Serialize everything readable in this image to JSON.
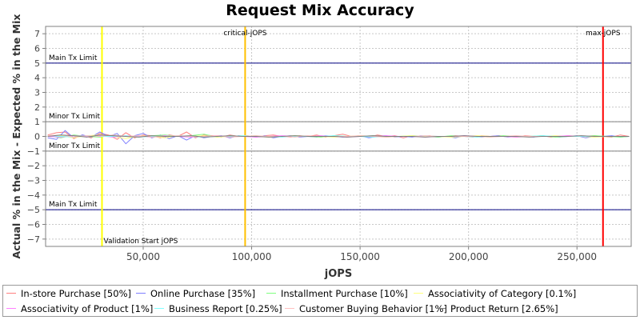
{
  "chart_data": {
    "type": "line",
    "title": "Request Mix Accuracy",
    "xlabel": "jOPS",
    "ylabel": "Actual % in the Mix - Expected % in the Mix",
    "xlim": [
      5000,
      275000
    ],
    "ylim": [
      -7.5,
      7.5
    ],
    "x_ticks": [
      50000,
      100000,
      150000,
      200000,
      250000
    ],
    "x_tick_labels": [
      "50,000",
      "100,000",
      "150,000",
      "200,000",
      "250,000"
    ],
    "y_ticks": [
      7,
      6,
      5,
      4,
      3,
      2,
      1,
      0,
      -1,
      -2,
      -3,
      -4,
      -5,
      -6,
      -7
    ],
    "y_tick_labels": [
      "7",
      "6",
      "5",
      "4",
      "3",
      "2",
      "1",
      "0",
      "−1",
      "−2",
      "−3",
      "−4",
      "−5",
      "−6",
      "−7"
    ],
    "grid": true,
    "legend_position": "bottom",
    "limit_lines": [
      {
        "label": "Main Tx Limit",
        "y": 5,
        "color": "#000080"
      },
      {
        "label": "Minor Tx Limit",
        "y": 1,
        "color": "#808080"
      },
      {
        "label": "Minor Tx Limit",
        "y": -1,
        "color": "#808080"
      },
      {
        "label": "Main Tx Limit",
        "y": -5,
        "color": "#000080"
      }
    ],
    "vertical_markers": [
      {
        "label": "Validation Start jOPS",
        "x": 31000,
        "color": "#ffff00",
        "label_position": "bottom"
      },
      {
        "label": "critical-jOPS",
        "x": 97000,
        "color": "#ffc000",
        "label_position": "top"
      },
      {
        "label": "max-jOPS",
        "x": 262000,
        "color": "#ff0000",
        "label_position": "top"
      }
    ],
    "series": [
      {
        "name": "In-store Purchase [50%]",
        "color": "#ff7f7f",
        "x": [
          6000,
          10000,
          14000,
          18000,
          22000,
          26000,
          30000,
          34000,
          38000,
          42000,
          46000,
          50000,
          54000,
          58000,
          62000,
          66000,
          70000,
          74000,
          78000,
          82000,
          86000,
          90000,
          94000,
          98000,
          102000,
          106000,
          110000,
          114000,
          118000,
          122000,
          126000,
          130000,
          134000,
          138000,
          142000,
          146000,
          150000,
          154000,
          158000,
          162000,
          166000,
          170000,
          174000,
          178000,
          182000,
          186000,
          190000,
          194000,
          198000,
          202000,
          206000,
          210000,
          214000,
          218000,
          222000,
          226000,
          230000,
          234000,
          238000,
          242000,
          246000,
          250000,
          254000,
          258000,
          262000,
          266000,
          270000,
          274000
        ],
        "y": [
          0.1,
          0.25,
          0.3,
          -0.15,
          0.1,
          -0.1,
          0.2,
          0.1,
          -0.2,
          0.25,
          -0.1,
          0.1,
          0.05,
          -0.1,
          0.1,
          0.0,
          0.3,
          -0.1,
          0.1,
          0.05,
          -0.05,
          0.1,
          0.0,
          0.05,
          -0.05,
          0.05,
          0.1,
          0.0,
          -0.05,
          0.05,
          0.0,
          0.1,
          -0.05,
          0.05,
          0.15,
          0.0,
          0.05,
          -0.05,
          0.1,
          0.0,
          0.05,
          -0.1,
          0.05,
          0.0,
          0.05,
          -0.05,
          0.0,
          0.05,
          0.0,
          -0.05,
          0.05,
          0.0,
          0.05,
          0.0,
          -0.05,
          0.05,
          0.0,
          0.05,
          -0.05,
          0.0,
          0.05,
          0.0,
          0.0,
          0.05,
          0.0,
          -0.05,
          0.1,
          0.0
        ]
      },
      {
        "name": "Online Purchase [35%]",
        "color": "#7f7fff",
        "x": [
          6000,
          10000,
          14000,
          18000,
          22000,
          26000,
          30000,
          34000,
          38000,
          42000,
          46000,
          50000,
          54000,
          58000,
          62000,
          66000,
          70000,
          74000,
          78000,
          82000,
          86000,
          90000,
          94000,
          98000,
          102000,
          106000,
          110000,
          114000,
          118000,
          122000,
          126000,
          130000,
          134000,
          138000,
          142000,
          146000,
          150000,
          154000,
          158000,
          162000,
          166000,
          170000,
          174000,
          178000,
          182000,
          186000,
          190000,
          194000,
          198000,
          202000,
          206000,
          210000,
          214000,
          218000,
          222000,
          226000,
          230000,
          234000,
          238000,
          242000,
          246000,
          250000,
          254000,
          258000,
          262000,
          266000,
          270000,
          274000
        ],
        "y": [
          -0.1,
          -0.2,
          0.4,
          -0.1,
          0.1,
          -0.05,
          0.3,
          0.0,
          0.2,
          -0.5,
          0.05,
          0.2,
          -0.1,
          0.1,
          -0.15,
          0.05,
          -0.25,
          0.05,
          -0.1,
          0.0,
          0.05,
          -0.1,
          0.05,
          0.0,
          -0.05,
          0.05,
          -0.1,
          0.0,
          0.05,
          -0.05,
          0.0,
          -0.05,
          0.05,
          0.0,
          -0.05,
          0.0,
          0.05,
          -0.1,
          0.0,
          0.05,
          -0.05,
          0.0,
          -0.05,
          0.05,
          0.0,
          -0.05,
          0.0,
          -0.1,
          0.05,
          0.0,
          -0.05,
          0.0,
          0.05,
          -0.05,
          0.0,
          0.0,
          -0.05,
          0.05,
          0.0,
          -0.05,
          0.0,
          0.05,
          -0.1,
          0.0,
          0.0,
          0.05,
          -0.05,
          0.0
        ]
      },
      {
        "name": "Installment Purchase [10%]",
        "color": "#7fff7f",
        "x": [
          6000,
          12000,
          18000,
          24000,
          30000,
          36000,
          42000,
          48000,
          54000,
          60000,
          66000,
          72000,
          78000,
          84000,
          90000,
          96000,
          102000,
          108000,
          114000,
          120000,
          126000,
          132000,
          138000,
          144000,
          150000,
          156000,
          162000,
          168000,
          174000,
          180000,
          186000,
          192000,
          198000,
          204000,
          210000,
          216000,
          222000,
          228000,
          234000,
          240000,
          246000,
          252000,
          258000,
          264000,
          270000,
          274000
        ],
        "y": [
          0.05,
          -0.1,
          0.1,
          0.0,
          -0.05,
          0.1,
          0.0,
          -0.05,
          0.05,
          0.1,
          0.0,
          0.05,
          0.15,
          -0.05,
          0.05,
          0.0,
          0.05,
          -0.05,
          0.0,
          0.05,
          0.0,
          -0.05,
          0.05,
          0.0,
          0.0,
          0.05,
          -0.05,
          0.0,
          0.05,
          0.0,
          -0.05,
          0.05,
          0.0,
          0.0,
          -0.05,
          0.05,
          0.0,
          0.0,
          0.05,
          -0.05,
          0.0,
          0.0,
          0.05,
          0.0,
          -0.05,
          0.0
        ]
      },
      {
        "name": "Associativity of Category [0.1%]",
        "color": "#ffff7f",
        "x": [
          6000,
          12000,
          18000,
          24000,
          30000,
          36000,
          42000,
          48000,
          54000,
          60000,
          66000,
          72000,
          78000,
          84000,
          90000,
          96000,
          102000,
          108000,
          114000,
          120000,
          126000,
          132000,
          138000,
          144000,
          150000,
          156000,
          162000,
          168000,
          174000,
          180000,
          186000,
          192000,
          198000,
          204000,
          210000,
          216000,
          222000,
          228000,
          234000,
          240000,
          246000,
          252000,
          258000,
          264000,
          270000,
          274000
        ],
        "y": [
          0.0,
          0.05,
          -0.1,
          0.05,
          0.1,
          0.0,
          -0.15,
          0.05,
          0.0,
          -0.1,
          0.05,
          0.0,
          0.05,
          -0.05,
          0.0,
          0.05,
          0.0,
          -0.05,
          0.0,
          0.05,
          0.0,
          0.0,
          -0.05,
          0.0,
          0.05,
          0.0,
          -0.05,
          0.0,
          0.05,
          0.0,
          0.0,
          -0.05,
          0.0,
          0.05,
          0.0,
          0.0,
          -0.05,
          0.0,
          0.0,
          0.05,
          0.0,
          0.0,
          -0.05,
          0.0,
          0.0,
          0.0
        ]
      },
      {
        "name": "Associativity of Product [1%]",
        "color": "#ff7fff",
        "x": [
          6000,
          12000,
          18000,
          24000,
          30000,
          36000,
          42000,
          48000,
          54000,
          60000,
          66000,
          72000,
          78000,
          84000,
          90000,
          96000,
          102000,
          108000,
          114000,
          120000,
          126000,
          132000,
          138000,
          144000,
          150000,
          156000,
          162000,
          168000,
          174000,
          180000,
          186000,
          192000,
          198000,
          204000,
          210000,
          216000,
          222000,
          228000,
          234000,
          240000,
          246000,
          252000,
          258000,
          264000,
          270000,
          274000
        ],
        "y": [
          0.0,
          -0.05,
          0.05,
          0.0,
          0.05,
          -0.05,
          0.05,
          0.0,
          -0.05,
          0.05,
          0.0,
          -0.05,
          0.0,
          0.05,
          0.0,
          0.0,
          -0.05,
          0.0,
          0.05,
          0.0,
          0.0,
          0.05,
          0.0,
          -0.05,
          0.0,
          0.0,
          0.05,
          0.0,
          0.0,
          -0.05,
          0.0,
          0.0,
          0.05,
          0.0,
          0.0,
          0.0,
          -0.05,
          0.0,
          0.0,
          0.0,
          0.05,
          0.0,
          0.0,
          0.0,
          0.0,
          0.0
        ]
      },
      {
        "name": "Business Report [0.25%]",
        "color": "#7fffff",
        "x": [
          6000,
          12000,
          18000,
          24000,
          30000,
          36000,
          42000,
          48000,
          54000,
          60000,
          66000,
          72000,
          78000,
          84000,
          90000,
          96000,
          102000,
          108000,
          114000,
          120000,
          126000,
          132000,
          138000,
          144000,
          150000,
          156000,
          162000,
          168000,
          174000,
          180000,
          186000,
          192000,
          198000,
          204000,
          210000,
          216000,
          222000,
          228000,
          234000,
          240000,
          246000,
          252000,
          258000,
          264000,
          270000,
          274000
        ],
        "y": [
          0.05,
          0.0,
          -0.05,
          0.05,
          0.0,
          0.0,
          0.05,
          -0.05,
          0.0,
          0.0,
          0.05,
          0.0,
          -0.05,
          0.0,
          0.0,
          0.05,
          0.0,
          0.0,
          -0.05,
          0.0,
          0.0,
          0.0,
          0.05,
          0.0,
          0.0,
          -0.05,
          0.0,
          0.0,
          0.0,
          0.05,
          0.0,
          0.0,
          0.0,
          -0.05,
          0.0,
          0.0,
          0.0,
          0.0,
          0.05,
          0.0,
          0.0,
          0.0,
          0.0,
          0.0,
          0.0,
          0.0
        ]
      },
      {
        "name": "Customer Buying Behavior [1%]",
        "color": "#ffbfbf",
        "x": [
          6000,
          12000,
          18000,
          24000,
          30000,
          36000,
          42000,
          48000,
          54000,
          60000,
          66000,
          72000,
          78000,
          84000,
          90000,
          96000,
          102000,
          108000,
          114000,
          120000,
          126000,
          132000,
          138000,
          144000,
          150000,
          156000,
          162000,
          168000,
          174000,
          180000,
          186000,
          192000,
          198000,
          204000,
          210000,
          216000,
          222000,
          228000,
          234000,
          240000,
          246000,
          252000,
          258000,
          264000,
          270000,
          274000
        ],
        "y": [
          0.05,
          0.1,
          -0.05,
          0.05,
          0.0,
          0.1,
          0.0,
          0.05,
          -0.05,
          0.0,
          0.05,
          0.0,
          0.0,
          0.05,
          -0.05,
          0.0,
          0.05,
          0.0,
          0.0,
          -0.05,
          0.05,
          0.0,
          0.0,
          0.0,
          0.05,
          0.0,
          -0.05,
          0.0,
          0.0,
          0.05,
          0.0,
          0.0,
          0.0,
          0.0,
          -0.05,
          0.0,
          0.05,
          0.0,
          0.0,
          0.0,
          0.0,
          0.05,
          0.0,
          0.0,
          0.0,
          0.0
        ]
      },
      {
        "name": "Product Return [2.65%]",
        "color": "#7f7f7f",
        "x": [
          6000,
          12000,
          18000,
          24000,
          30000,
          36000,
          42000,
          48000,
          54000,
          60000,
          66000,
          72000,
          78000,
          84000,
          90000,
          96000,
          102000,
          108000,
          114000,
          120000,
          126000,
          132000,
          138000,
          144000,
          150000,
          156000,
          162000,
          168000,
          174000,
          180000,
          186000,
          192000,
          198000,
          204000,
          210000,
          216000,
          222000,
          228000,
          234000,
          240000,
          246000,
          252000,
          258000,
          264000,
          270000,
          274000
        ],
        "y": [
          0.0,
          0.1,
          0.05,
          -0.05,
          0.1,
          0.05,
          0.0,
          -0.05,
          0.05,
          0.0,
          0.0,
          0.05,
          -0.05,
          0.0,
          0.05,
          0.0,
          0.0,
          -0.05,
          0.0,
          0.05,
          0.0,
          0.0,
          0.0,
          -0.05,
          0.0,
          0.05,
          0.0,
          0.0,
          0.0,
          -0.05,
          0.0,
          0.0,
          0.05,
          0.0,
          0.0,
          0.0,
          0.0,
          -0.05,
          0.0,
          0.0,
          0.0,
          0.05,
          0.0,
          0.0,
          0.0,
          0.0
        ]
      }
    ]
  }
}
